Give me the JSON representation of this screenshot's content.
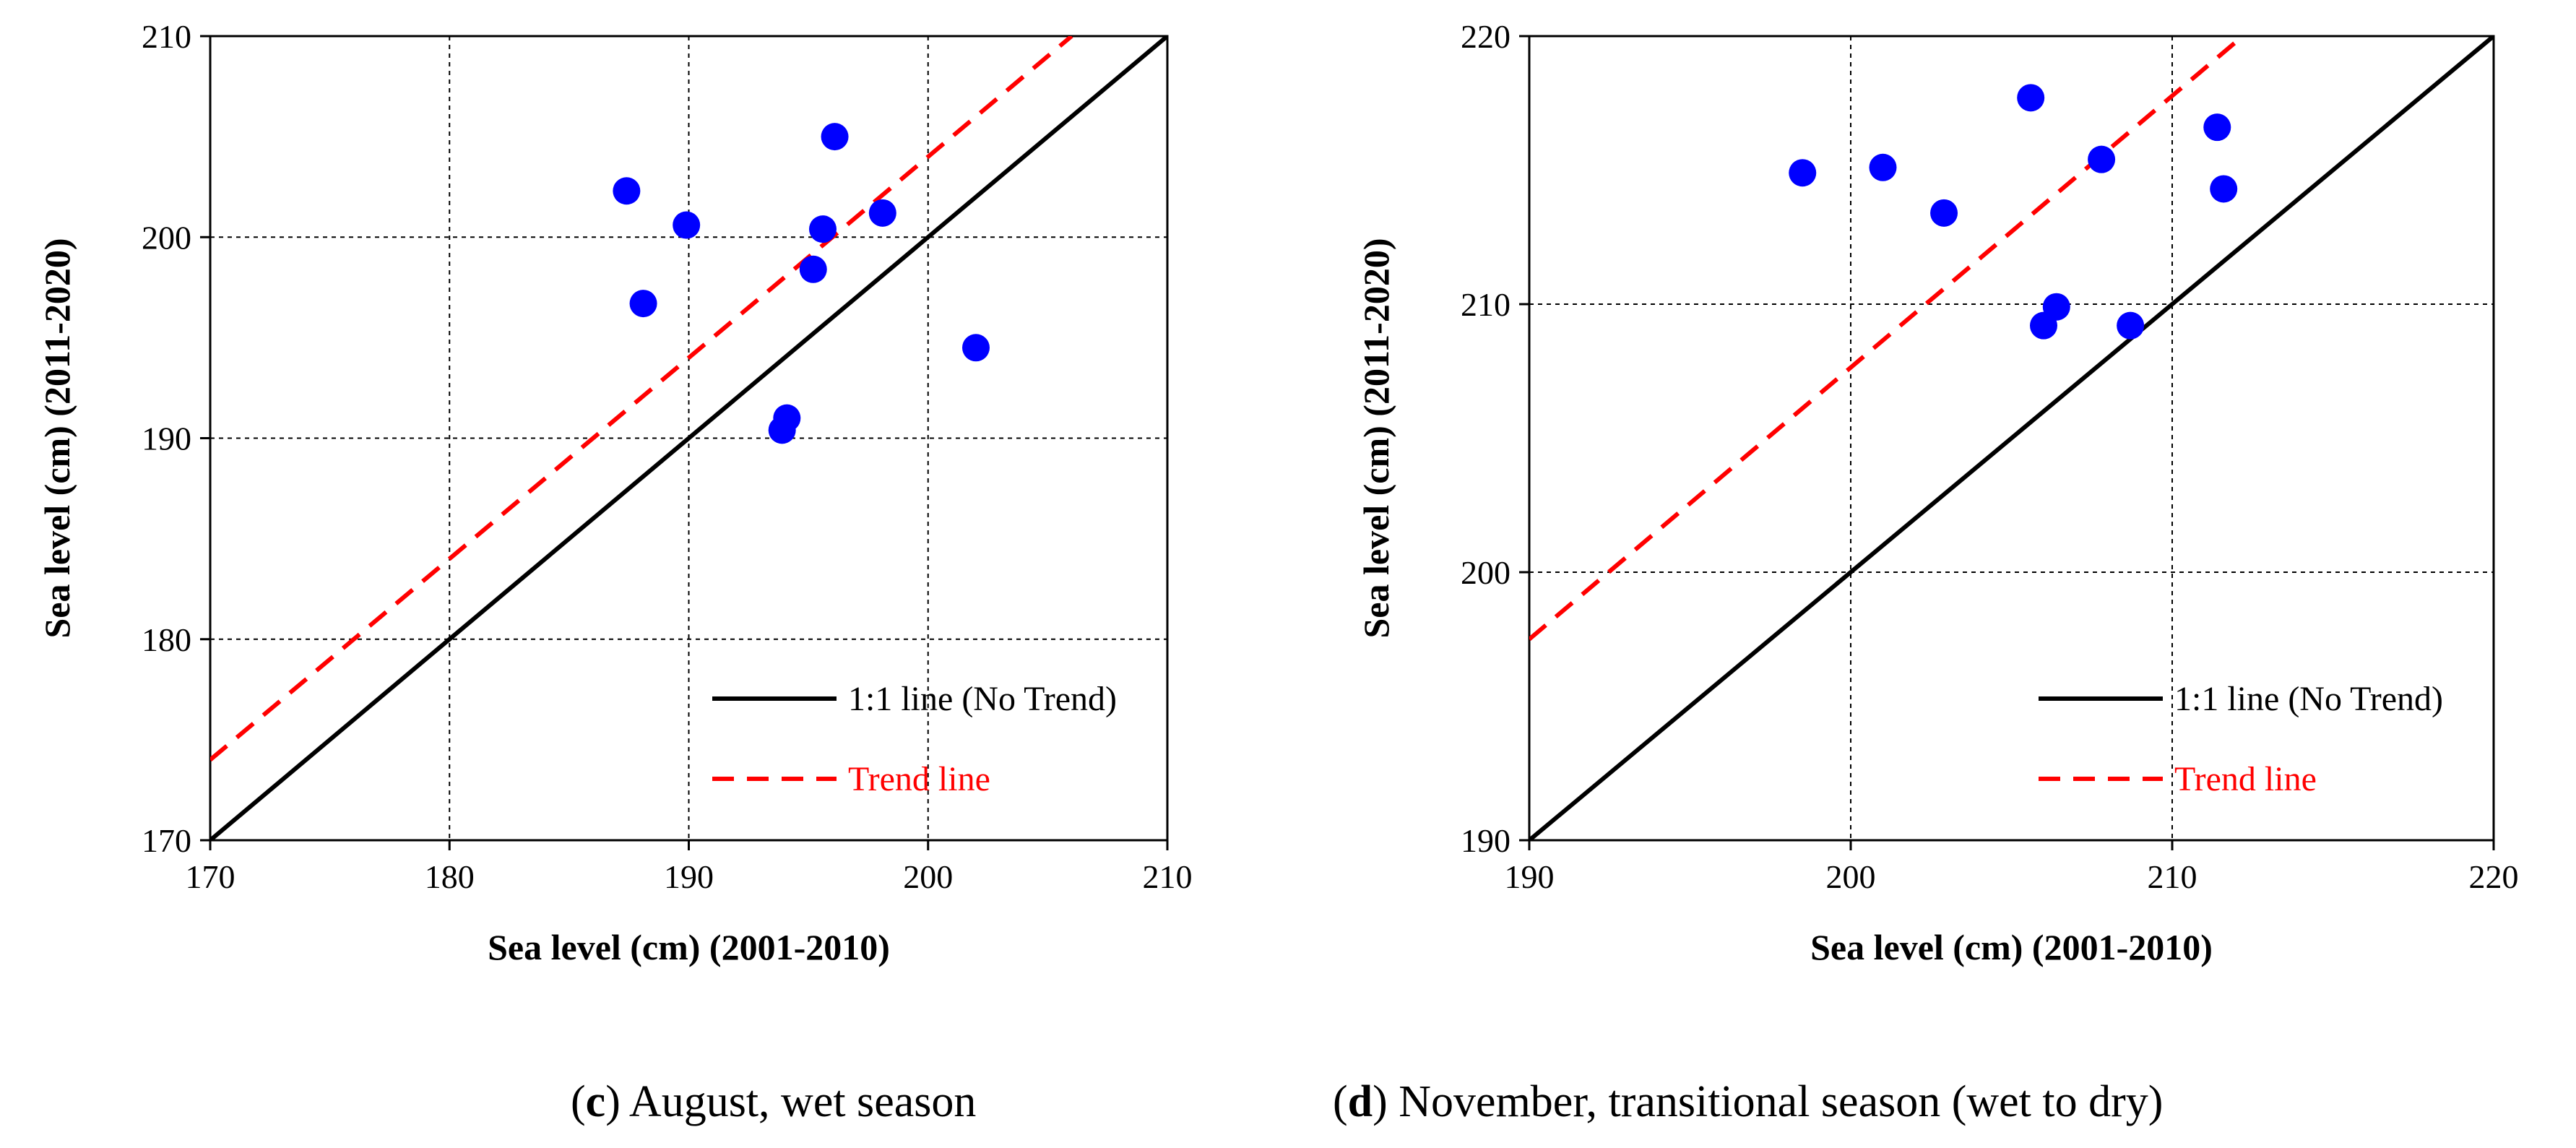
{
  "chart_data": [
    {
      "id": "c",
      "type": "scatter",
      "caption_letter": "c",
      "caption_text": ") August, wet season",
      "caption_open": "(",
      "xlabel": "Sea level (cm) (2001-2010)",
      "ylabel": "Sea level (cm) (2011-2020)",
      "xlim": [
        170,
        210
      ],
      "ylim": [
        170,
        210
      ],
      "xticks": [
        170,
        180,
        190,
        200,
        210
      ],
      "yticks": [
        170,
        180,
        190,
        200,
        210
      ],
      "grid": true,
      "legend_position": "bottom-right",
      "legend": {
        "one_to_one": "1:1 line (No Trend)",
        "trend": "Trend line"
      },
      "one_to_one_line": {
        "x": [
          170,
          210
        ],
        "y": [
          170,
          210
        ]
      },
      "trend_line": {
        "x": [
          170,
          206
        ],
        "y": [
          174,
          210
        ]
      },
      "points": [
        {
          "x": 187.4,
          "y": 202.3
        },
        {
          "x": 188.1,
          "y": 196.7
        },
        {
          "x": 189.9,
          "y": 200.6
        },
        {
          "x": 193.9,
          "y": 190.4
        },
        {
          "x": 194.1,
          "y": 191.0
        },
        {
          "x": 195.2,
          "y": 198.4
        },
        {
          "x": 195.6,
          "y": 200.4
        },
        {
          "x": 196.1,
          "y": 205.0
        },
        {
          "x": 198.1,
          "y": 201.2
        },
        {
          "x": 202.0,
          "y": 194.5
        }
      ],
      "colors": {
        "points": "#0000ff",
        "one_to_one": "#000000",
        "trend": "#ff0000"
      }
    },
    {
      "id": "d",
      "type": "scatter",
      "caption_letter": "d",
      "caption_text": ") November, transitional season (wet to dry)",
      "caption_open": "(",
      "xlabel": "Sea level (cm) (2001-2010)",
      "ylabel": "Sea level (cm) (2011-2020)",
      "xlim": [
        190,
        220
      ],
      "ylim": [
        190,
        220
      ],
      "xticks": [
        190,
        200,
        210,
        220
      ],
      "yticks": [
        190,
        200,
        210,
        220
      ],
      "grid": true,
      "legend_position": "bottom-right",
      "legend": {
        "one_to_one": "1:1 line (No Trend)",
        "trend": "Trend line"
      },
      "one_to_one_line": {
        "x": [
          190,
          220
        ],
        "y": [
          190,
          220
        ]
      },
      "trend_line": {
        "x": [
          190,
          212
        ],
        "y": [
          197.5,
          219.8
        ]
      },
      "points": [
        {
          "x": 198.5,
          "y": 214.9
        },
        {
          "x": 201.0,
          "y": 215.1
        },
        {
          "x": 202.9,
          "y": 213.4
        },
        {
          "x": 205.6,
          "y": 217.7
        },
        {
          "x": 206.0,
          "y": 209.2
        },
        {
          "x": 206.4,
          "y": 209.9
        },
        {
          "x": 207.8,
          "y": 215.4
        },
        {
          "x": 208.7,
          "y": 209.2
        },
        {
          "x": 211.4,
          "y": 216.6
        },
        {
          "x": 211.6,
          "y": 214.3
        }
      ],
      "colors": {
        "points": "#0000ff",
        "one_to_one": "#000000",
        "trend": "#ff0000"
      }
    }
  ]
}
